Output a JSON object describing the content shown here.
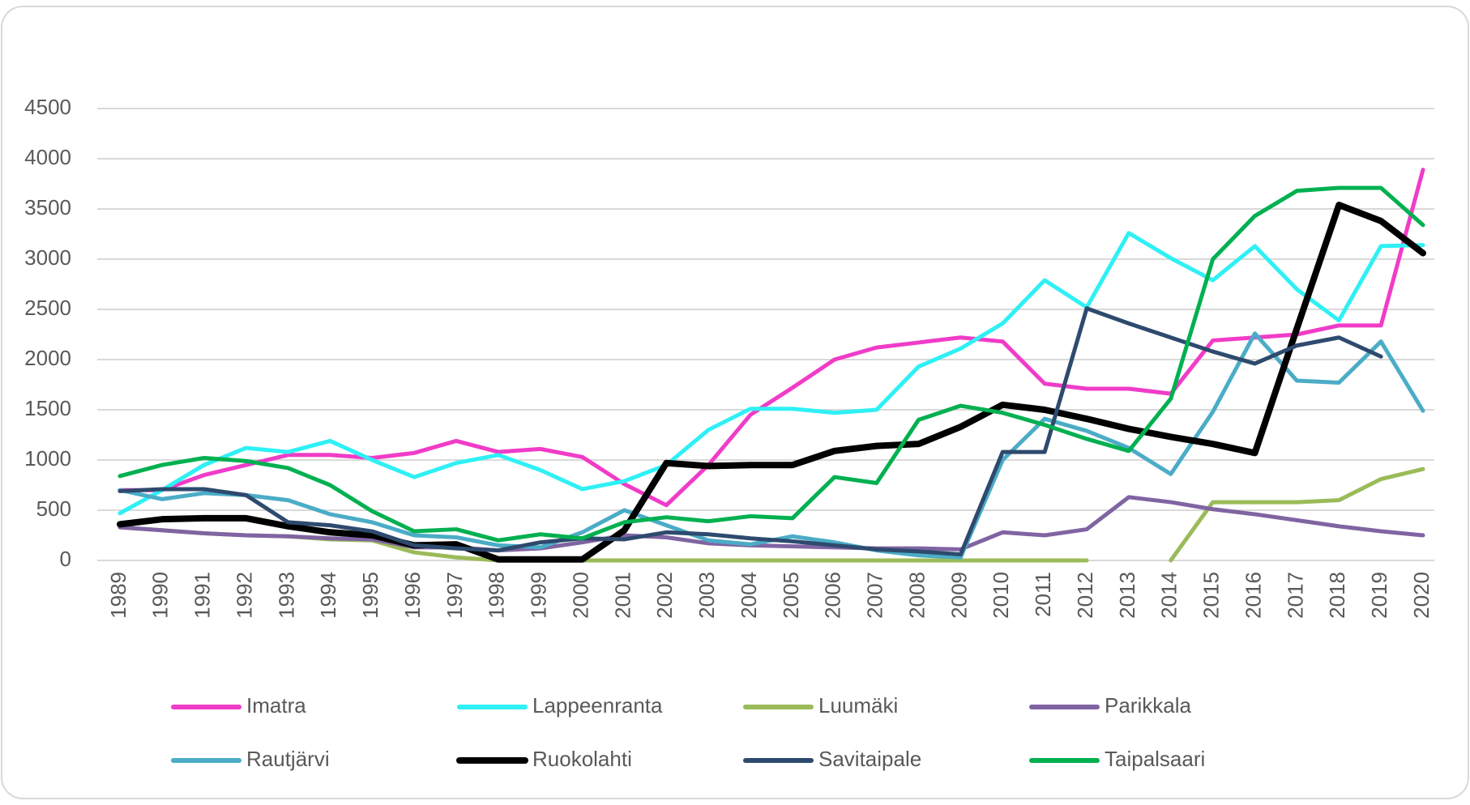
{
  "chart_data": {
    "type": "line",
    "categories": [
      "1989",
      "1990",
      "1991",
      "1992",
      "1993",
      "1994",
      "1995",
      "1996",
      "1997",
      "1998",
      "1999",
      "2000",
      "2001",
      "2002",
      "2003",
      "2004",
      "2005",
      "2006",
      "2007",
      "2008",
      "2009",
      "2010",
      "2011",
      "2012",
      "2013",
      "2014",
      "2015",
      "2016",
      "2017",
      "2018",
      "2019",
      "2020"
    ],
    "series": [
      {
        "name": "Imatra",
        "color": "#f03cc8",
        "values": [
          700,
          700,
          850,
          950,
          1050,
          1050,
          1020,
          1070,
          1190,
          1080,
          1110,
          1030,
          760,
          550,
          950,
          1450,
          1720,
          2000,
          2120,
          2170,
          2220,
          2180,
          1760,
          1710,
          1710,
          1660,
          2190,
          2220,
          2250,
          2340,
          2340,
          3890
        ]
      },
      {
        "name": "Lappeenranta",
        "color": "#2ef0f5",
        "values": [
          470,
          700,
          950,
          1120,
          1080,
          1190,
          1000,
          830,
          970,
          1050,
          900,
          710,
          790,
          950,
          1300,
          1510,
          1510,
          1470,
          1500,
          1930,
          2110,
          2360,
          2790,
          2520,
          3260,
          3010,
          2790,
          3130,
          2700,
          2390,
          3130,
          3140
        ]
      },
      {
        "name": "Luumäki",
        "color": "#9bbb59",
        "values": [
          330,
          300,
          270,
          250,
          240,
          210,
          200,
          80,
          30,
          0,
          0,
          0,
          0,
          0,
          0,
          0,
          0,
          0,
          0,
          0,
          0,
          0,
          0,
          0,
          null,
          0,
          580,
          580,
          580,
          600,
          810,
          910
        ]
      },
      {
        "name": "Parikkala",
        "color": "#8064a2",
        "values": [
          330,
          300,
          270,
          250,
          240,
          220,
          210,
          130,
          130,
          100,
          120,
          180,
          250,
          230,
          170,
          150,
          140,
          130,
          120,
          120,
          110,
          280,
          250,
          310,
          630,
          580,
          510,
          460,
          400,
          340,
          290,
          250
        ]
      },
      {
        "name": "Rautjärvi",
        "color": "#4bacc6",
        "values": [
          700,
          610,
          670,
          650,
          600,
          460,
          380,
          250,
          230,
          150,
          130,
          280,
          500,
          350,
          200,
          160,
          240,
          180,
          100,
          50,
          30,
          1000,
          1410,
          1290,
          1120,
          860,
          1480,
          2260,
          1790,
          1770,
          2180,
          1490
        ]
      },
      {
        "name": "Ruokolahti",
        "color": "#000000",
        "values": [
          360,
          410,
          420,
          420,
          340,
          280,
          250,
          150,
          160,
          10,
          10,
          10,
          300,
          970,
          940,
          950,
          950,
          1090,
          1140,
          1160,
          1330,
          1550,
          1500,
          1410,
          1310,
          1230,
          1160,
          1070,
          2310,
          3540,
          3380,
          3060
        ]
      },
      {
        "name": "Savitaipale",
        "color": "#2e4a6e",
        "values": [
          690,
          710,
          710,
          650,
          380,
          350,
          290,
          150,
          120,
          100,
          180,
          220,
          210,
          280,
          260,
          220,
          190,
          150,
          110,
          90,
          60,
          1080,
          1080,
          2510,
          2360,
          2220,
          2080,
          1960,
          2140,
          2220,
          2030,
          null
        ]
      },
      {
        "name": "Taipalsaari",
        "color": "#00b050",
        "values": [
          840,
          950,
          1020,
          990,
          920,
          750,
          490,
          290,
          310,
          200,
          260,
          220,
          380,
          430,
          390,
          440,
          420,
          830,
          770,
          1400,
          1540,
          1470,
          1350,
          1210,
          1090,
          1610,
          3000,
          3430,
          3680,
          3710,
          3710,
          3340
        ]
      }
    ],
    "ylim": [
      0,
      4500
    ],
    "yticks": [
      0,
      500,
      1000,
      1500,
      2000,
      2500,
      3000,
      3500,
      4000,
      4500
    ],
    "grid": true
  }
}
